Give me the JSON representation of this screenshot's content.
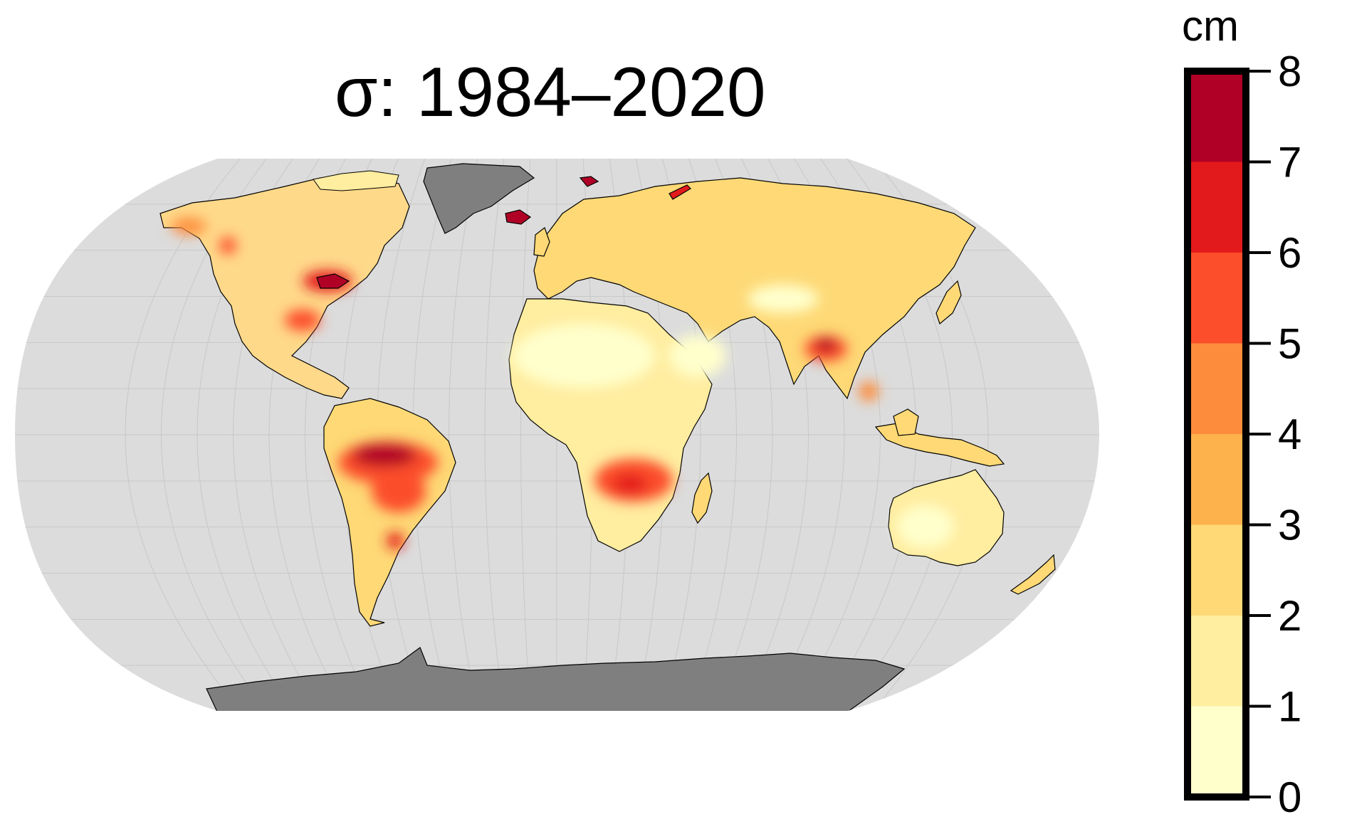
{
  "title": "σ: 1984–2020",
  "legend": {
    "unit": "cm",
    "ticks": [
      "0",
      "1",
      "2",
      "3",
      "4",
      "5",
      "6",
      "7",
      "8"
    ],
    "bins": [
      {
        "from": 0,
        "to": 1,
        "color": "#ffffcc"
      },
      {
        "from": 1,
        "to": 2,
        "color": "#ffeda0"
      },
      {
        "from": 2,
        "to": 3,
        "color": "#fed976"
      },
      {
        "from": 3,
        "to": 4,
        "color": "#feb24c"
      },
      {
        "from": 4,
        "to": 5,
        "color": "#fd8d3c"
      },
      {
        "from": 5,
        "to": 6,
        "color": "#fc4e2a"
      },
      {
        "from": 6,
        "to": 7,
        "color": "#e31a1c"
      },
      {
        "from": 7,
        "to": 8,
        "color": "#b10026"
      }
    ]
  },
  "colors": {
    "ocean": "#dcdcdc",
    "no_data": "#7f7f7f",
    "graticule": "#c8c8c8",
    "coastline": "#000000"
  }
}
